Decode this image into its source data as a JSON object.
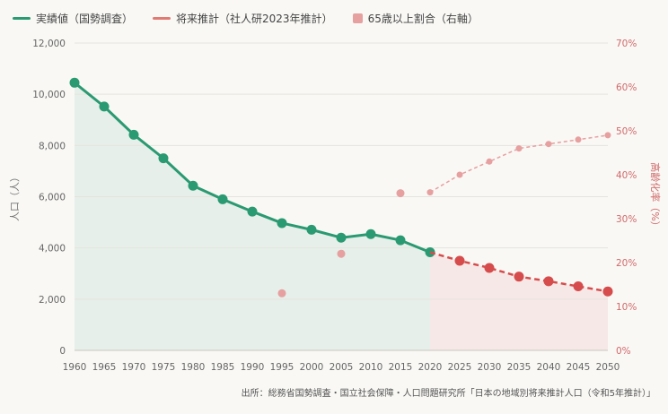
{
  "legend": {
    "actual_label": "実績値（国勢調査）",
    "projection_label": "将来推計（社人研2023年推計）",
    "elderly_label": "65歳以上割合（右軸）"
  },
  "colors": {
    "actual": "#2a9a72",
    "projection": "#d64c4c",
    "projection_legend": "#e07a72",
    "elderly": "#e6a0a0",
    "actual_fill": "#e6efe9",
    "projection_fill": "#f6e8e6"
  },
  "source": "出所：総務省国勢調査・国立社会保障・人口問題研究所「日本の地域別将来推計人口（令和5年推計）」",
  "chart_data": {
    "type": "line",
    "x_ticks": [
      1960,
      1965,
      1970,
      1975,
      1980,
      1985,
      1990,
      1995,
      2000,
      2005,
      2010,
      2015,
      2020,
      2025,
      2030,
      2035,
      2040,
      2045,
      2050
    ],
    "xlim": [
      1960,
      2050
    ],
    "ylabel": "人口（人）",
    "ylim": [
      0,
      12000
    ],
    "y_ticks": [
      "0",
      "2,000",
      "4,000",
      "6,000",
      "8,000",
      "10,000",
      "12,000"
    ],
    "y_tick_values": [
      0,
      2000,
      4000,
      6000,
      8000,
      10000,
      12000
    ],
    "y2label": "高齢化率（%）",
    "y2lim": [
      0,
      70
    ],
    "y2_ticks": [
      "0%",
      "10%",
      "20%",
      "30%",
      "40%",
      "50%",
      "60%",
      "70%"
    ],
    "y2_tick_values": [
      0,
      10,
      20,
      30,
      40,
      50,
      60,
      70
    ],
    "grid": true,
    "legend_position": "top-left",
    "series": [
      {
        "name": "実績値（国勢調査）",
        "axis": "left",
        "style": "solid",
        "x": [
          1960,
          1965,
          1970,
          1975,
          1980,
          1985,
          1990,
          1995,
          2000,
          2005,
          2010,
          2015,
          2020
        ],
        "values": [
          10450,
          9520,
          8420,
          7500,
          6430,
          5900,
          5420,
          4970,
          4710,
          4400,
          4540,
          4300,
          3830
        ]
      },
      {
        "name": "将来推計（社人研2023年推計）",
        "axis": "left",
        "style": "dashed",
        "x": [
          2020,
          2025,
          2030,
          2035,
          2040,
          2045,
          2050
        ],
        "values": [
          3830,
          3500,
          3220,
          2880,
          2700,
          2500,
          2300
        ]
      },
      {
        "name": "65歳以上割合（右軸）",
        "axis": "right",
        "style": "points-and-dashed",
        "x": [
          1995,
          2005,
          2015,
          2020,
          2025,
          2030,
          2035,
          2040,
          2045,
          2050
        ],
        "values": [
          13,
          22,
          35.8,
          36,
          40,
          43,
          46,
          47,
          48,
          49
        ]
      }
    ]
  }
}
